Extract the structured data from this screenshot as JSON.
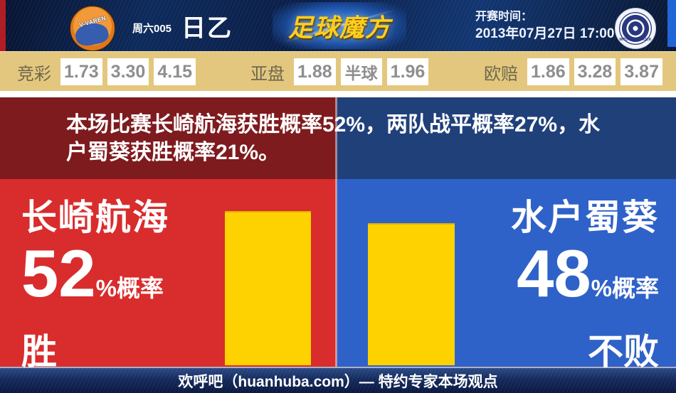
{
  "header": {
    "match_code": "周六005",
    "league": "日乙",
    "brand": "足球魔方",
    "kickoff_label": "开赛时间：",
    "kickoff_datetime": "2013年07月27日 17:00",
    "home_badge_text": "V-VAREN",
    "away_badge_text": "MITO HOLLYHOCK"
  },
  "odds": {
    "jingcai": {
      "label": "竞彩",
      "win": "1.73",
      "draw": "3.30",
      "lose": "4.15"
    },
    "yapan": {
      "label": "亚盘",
      "home": "1.88",
      "handicap": "半球",
      "away": "1.96"
    },
    "oupei": {
      "label": "欧赔",
      "win": "1.86",
      "draw": "3.28",
      "lose": "3.87"
    }
  },
  "summary": "本场比赛长崎航海获胜概率52%，两队战平概率27%，水户蜀葵获胜概率21%。",
  "teams": {
    "home": {
      "name": "长崎航海",
      "percent": "52",
      "suffix": "%概率",
      "verdict": "胜"
    },
    "away": {
      "name": "水户蜀葵",
      "percent": "48",
      "suffix": "%概率",
      "verdict": "不败"
    }
  },
  "chart_data": {
    "type": "bar",
    "categories": [
      "长崎航海",
      "水户蜀葵"
    ],
    "series": [
      {
        "name": "概率",
        "values": [
          52,
          48
        ]
      }
    ],
    "bars": {
      "home": 52,
      "away": 48
    },
    "probabilities": {
      "home_win_pct": 52,
      "draw_pct": 27,
      "away_win_pct": 21
    },
    "bar_color": "#fdd200"
  },
  "footer": {
    "text": "欢呼吧（huanhuba.com）— 特约专家本场观点"
  },
  "colors": {
    "home_red": "#d92c2d",
    "away_blue": "#2f62c8",
    "band_red": "#7e1b1e",
    "band_navy": "#20407a",
    "bar_yellow": "#fdd200",
    "odds_tan": "#e4c77e",
    "header_navy": "#0a1d45"
  }
}
